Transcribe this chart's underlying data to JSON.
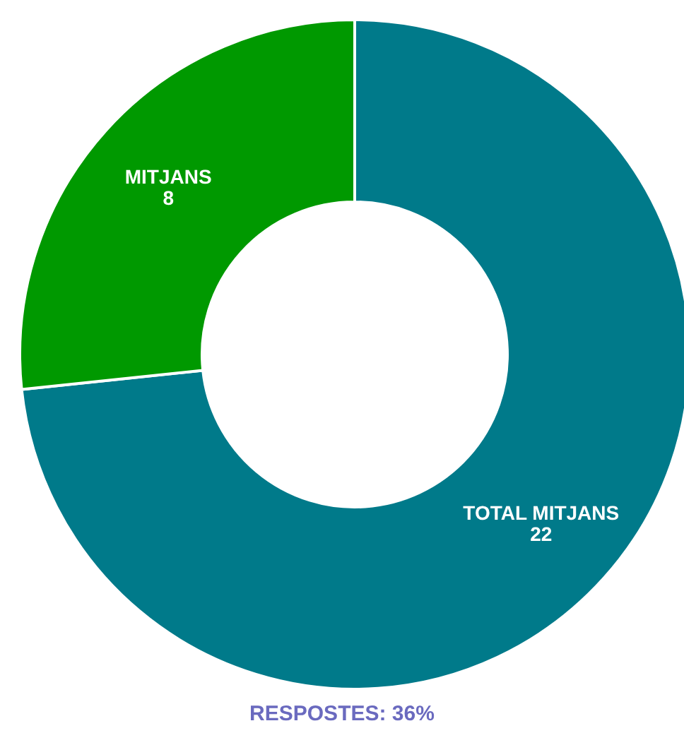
{
  "chart_data": {
    "type": "donut",
    "categories": [
      "TOTAL MITJANS",
      "MITJANS"
    ],
    "values": [
      22,
      8
    ],
    "colors": [
      "#007a8a",
      "#009900"
    ],
    "data_labels": true,
    "legend": false,
    "annotations": [
      "RESPOSTES: 36%"
    ]
  }
}
